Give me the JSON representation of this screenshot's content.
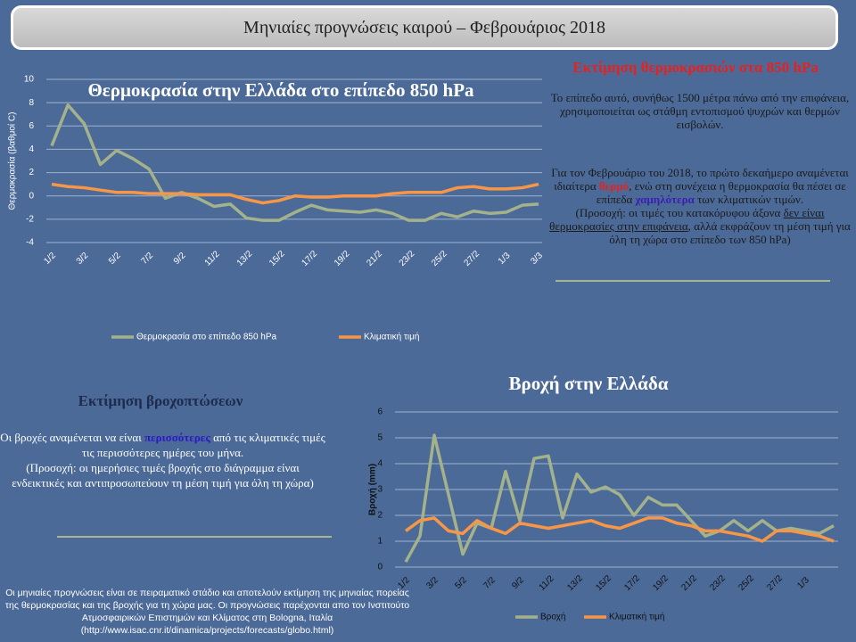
{
  "header": {
    "title": "Μηνιαίες προγνώσεις καιρού – Φεβρουάριος 2018"
  },
  "temperature_text": {
    "title": "Εκτίμηση θερμοκρασιών στα 850 hPa",
    "intro": "Το επίπεδο αυτό, συνήθως 1500 μέτρα πάνω από την επιφάνεια, χρησιμοποιείται ως στάθμη  εντοπισμού ψυχρών και θερμών εισβολών.",
    "forecast": [
      "Για τον Φεβρουάριο του 2018, το πρώτο δεκαήμερο αναμένεται ιδιαίτερα ",
      "θερμό",
      ", ενώ στη συνέχεια η θερμοκρασία θα πέσει σε επίπεδα ",
      "χαμηλότερα",
      " των κλιματικών τιμών."
    ],
    "note": [
      "(Προσοχή: οι τιμές του  κατακόρυφου άξονα ",
      "δεν είναι θερμοκρασίες στην επιφάνεια",
      ", αλλά εκφράζουν τη μέση τιμή για όλη τη χώρα στο επίπεδο των 850 hPa)"
    ]
  },
  "rain_text": {
    "title": "Εκτίμηση βροχοπτώσεων",
    "forecast": [
      "Οι βροχές αναμένεται να είναι ",
      "περισσότερες",
      " από τις κλιματικές τιμές τις περισσότερες ημέρες του μήνα."
    ],
    "note": "(Προσοχή: οι ημερήσιες τιμές βροχής στο διάγραμμα είναι ενδεικτικές και  αντιπροσωπεύουν τη μέση τιμή για όλη τη χώρα)"
  },
  "footer": "Οι μηνιαίες προγνώσεις  είναι σε πειραματικό στάδιο και αποτελούν  εκτίμηση της μηνιαίας πορείας της θερμοκρασίας  και της βροχής για τη χώρα μας. Οι προγνώσεις παρέχονται απο τον Ινστιτούτο Ατμοσφαιρικών  Επιστημών και Κλίματος στη Bologna, Ιταλία (http://www.isac.cnr.it/dinamica/projects/forecasts/globo.html)",
  "chart_data": [
    {
      "type": "line",
      "title": "Θερμοκρασία στην Ελλάδα στο επίπεδο 850 hPa",
      "y_label": "Θερμοκρασία  (βαθμοί C)",
      "categories": [
        "1/2",
        null,
        "3/2",
        null,
        "5/2",
        null,
        "7/2",
        null,
        "9/2",
        null,
        "11/2",
        null,
        "13/2",
        null,
        "15/2",
        null,
        "17/2",
        null,
        "19/2",
        null,
        "21/2",
        null,
        "23/2",
        null,
        "25/2",
        null,
        "27/2",
        null,
        "1/3",
        null,
        "3/3"
      ],
      "series": [
        {
          "name": "Θερμοκρασία  στο επίπεδο 850 hPa",
          "color": "#a3b28a",
          "values": [
            4.3,
            7.8,
            6.2,
            2.7,
            3.9,
            3.2,
            2.3,
            -0.2,
            0.3,
            -0.2,
            -0.9,
            -0.7,
            -1.9,
            -2.1,
            -2.1,
            -1.4,
            -0.8,
            -1.2,
            -1.3,
            -1.4,
            -1.2,
            -1.5,
            -2.1,
            -2.1,
            -1.5,
            -1.8,
            -1.3,
            -1.5,
            -1.4,
            -0.8,
            -0.7
          ]
        },
        {
          "name": "Κλιματική τιμή",
          "color": "#f79646",
          "values": [
            1.0,
            0.8,
            0.7,
            0.5,
            0.3,
            0.3,
            0.2,
            0.2,
            0.2,
            0.1,
            0.1,
            0.1,
            -0.3,
            -0.6,
            -0.4,
            0.0,
            -0.1,
            -0.1,
            0.0,
            0.0,
            0.0,
            0.2,
            0.3,
            0.3,
            0.3,
            0.7,
            0.8,
            0.6,
            0.6,
            0.7,
            1.0
          ]
        }
      ],
      "ylim": [
        -4,
        10
      ],
      "yticks": [
        -4,
        -2,
        0,
        2,
        4,
        6,
        8,
        10
      ],
      "grid": true,
      "legend": "bottom"
    },
    {
      "type": "line",
      "title": "Βροχή στην Ελλάδα",
      "y_label": "Βροχή (mm)",
      "categories": [
        "1/2",
        null,
        "3/2",
        null,
        "5/2",
        null,
        "7/2",
        null,
        "9/2",
        null,
        "11/2",
        null,
        "13/2",
        null,
        "15/2",
        null,
        "17/2",
        null,
        "19/2",
        null,
        "21/2",
        null,
        "23/2",
        null,
        "25/2",
        null,
        "27/2",
        null,
        "1/3",
        null,
        null
      ],
      "series": [
        {
          "name": "Βροχή",
          "color": "#a3b28a",
          "values": [
            0.2,
            1.2,
            5.1,
            2.8,
            0.5,
            1.7,
            1.5,
            3.7,
            1.8,
            4.2,
            4.3,
            1.9,
            3.6,
            2.9,
            3.1,
            2.8,
            2.0,
            2.7,
            2.4,
            2.4,
            1.8,
            1.2,
            1.4,
            1.8,
            1.4,
            1.8,
            1.4,
            1.5,
            1.4,
            1.3,
            1.6
          ]
        },
        {
          "name": "Κλιματική τιμή",
          "color": "#f79646",
          "values": [
            1.4,
            1.8,
            1.9,
            1.4,
            1.3,
            1.8,
            1.5,
            1.3,
            1.7,
            1.6,
            1.5,
            1.6,
            1.7,
            1.8,
            1.6,
            1.5,
            1.7,
            1.9,
            1.9,
            1.7,
            1.6,
            1.4,
            1.4,
            1.3,
            1.2,
            1.0,
            1.4,
            1.4,
            1.3,
            1.2,
            1.0
          ]
        }
      ],
      "ylim": [
        0,
        6
      ],
      "yticks": [
        0,
        1,
        2,
        3,
        4,
        5,
        6
      ],
      "grid": true,
      "legend": "bottom"
    }
  ]
}
